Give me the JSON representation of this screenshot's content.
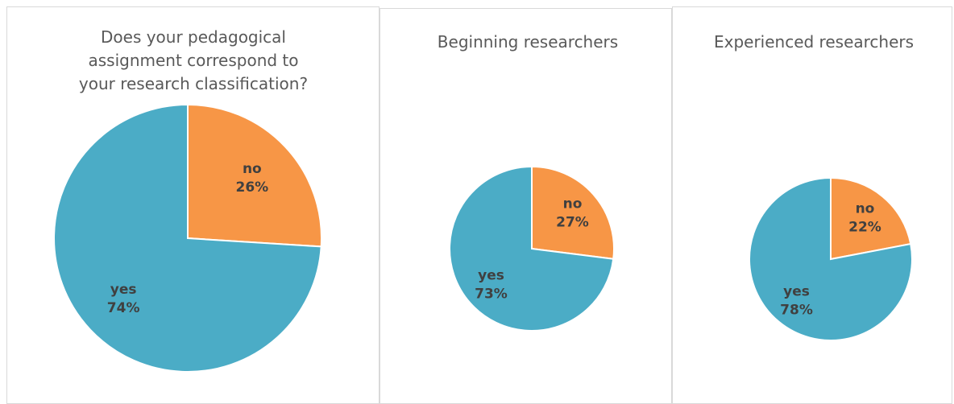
{
  "chart_data": [
    {
      "type": "pie",
      "title": "Does your pedagogical assignment correspond to your research classification?",
      "categories": [
        "no",
        "yes"
      ],
      "values": [
        26,
        74
      ],
      "value_labels": [
        "26%",
        "74%"
      ],
      "colors": [
        "#f79646",
        "#4bacc6"
      ]
    },
    {
      "type": "pie",
      "title": "Beginning researchers",
      "categories": [
        "no",
        "yes"
      ],
      "values": [
        27,
        73
      ],
      "value_labels": [
        "27%",
        "73%"
      ],
      "colors": [
        "#f79646",
        "#4bacc6"
      ]
    },
    {
      "type": "pie",
      "title": "Experienced researchers",
      "categories": [
        "no",
        "yes"
      ],
      "values": [
        22,
        78
      ],
      "value_labels": [
        "22%",
        "78%"
      ],
      "colors": [
        "#f79646",
        "#4bacc6"
      ]
    }
  ]
}
